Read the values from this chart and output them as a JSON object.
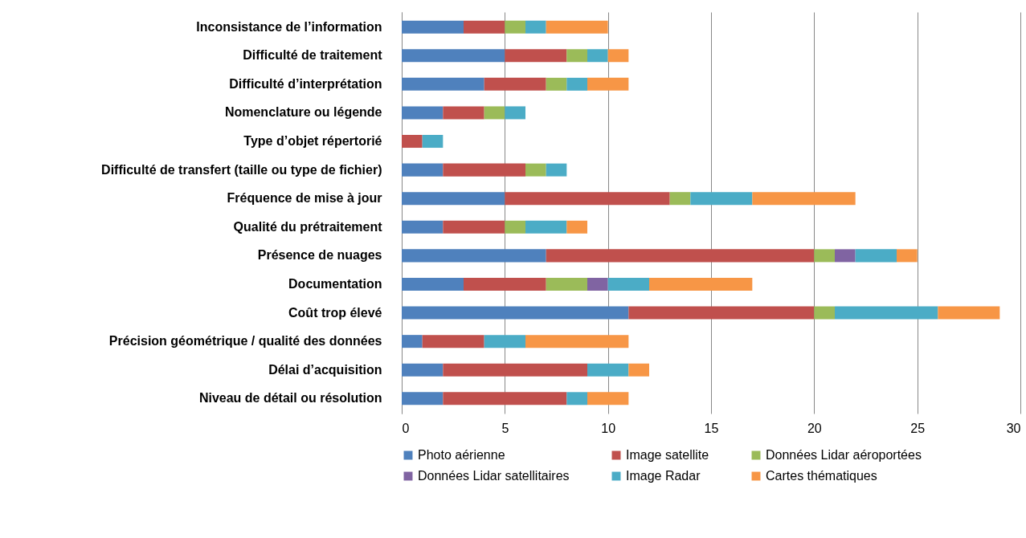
{
  "chart_data": {
    "type": "bar",
    "orientation": "horizontal",
    "stacked": true,
    "grid": "x",
    "legend": "bottom",
    "categories": [
      "Inconsistance de l’information",
      "Difficulté de traitement",
      "Difficulté d’interprétation",
      "Nomenclature ou légende",
      "Type d’objet répertorié",
      "Difficulté de transfert (taille ou type de fichier)",
      "Fréquence de mise à jour",
      "Qualité du prétraitement",
      "Présence de nuages",
      "Documentation",
      "Coût trop élevé",
      "Précision géométrique / qualité des données",
      "Délai d’acquisition",
      "Niveau de détail ou résolution"
    ],
    "series": [
      {
        "name": "Photo aérienne",
        "color": "#4f81bd",
        "values": [
          3,
          5,
          4,
          2,
          0,
          2,
          5,
          2,
          7,
          3,
          11,
          1,
          2,
          2
        ]
      },
      {
        "name": "Image satellite",
        "color": "#c0504d",
        "values": [
          2,
          3,
          3,
          2,
          1,
          4,
          8,
          3,
          13,
          4,
          9,
          3,
          7,
          6
        ]
      },
      {
        "name": "Données Lidar aéroportées",
        "color": "#9bbb59",
        "values": [
          1,
          1,
          1,
          1,
          0,
          1,
          1,
          1,
          1,
          2,
          1,
          0,
          0,
          0
        ]
      },
      {
        "name": "Données Lidar satellitaires",
        "color": "#8064a2",
        "values": [
          0,
          0,
          0,
          0,
          0,
          0,
          0,
          0,
          1,
          1,
          0,
          0,
          0,
          0
        ]
      },
      {
        "name": "Image Radar",
        "color": "#4bacc6",
        "values": [
          1,
          1,
          1,
          1,
          1,
          1,
          3,
          2,
          2,
          2,
          5,
          2,
          2,
          1
        ]
      },
      {
        "name": "Cartes thématiques",
        "color": "#f79646",
        "values": [
          3,
          1,
          2,
          0,
          0,
          0,
          5,
          1,
          1,
          5,
          3,
          5,
          1,
          2
        ]
      }
    ],
    "xlim": [
      0,
      30
    ],
    "xticks": [
      0,
      5,
      10,
      15,
      20,
      25,
      30
    ]
  }
}
